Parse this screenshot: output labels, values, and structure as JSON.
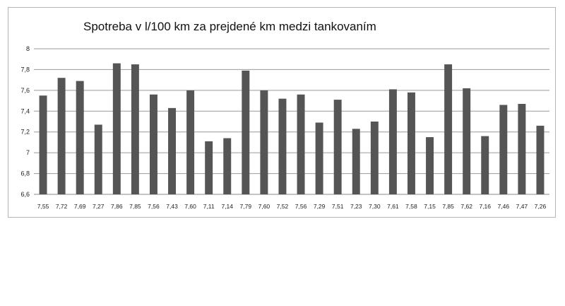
{
  "chart_data": {
    "type": "bar",
    "title": "Spotreba v l/100 km za prejdené km medzi tankovaním",
    "xlabel": "",
    "ylabel": "",
    "ylim": [
      6.6,
      8.0
    ],
    "yticks": [
      {
        "value": 6.6,
        "label": "6,6"
      },
      {
        "value": 6.8,
        "label": "6,8"
      },
      {
        "value": 7.0,
        "label": "7"
      },
      {
        "value": 7.2,
        "label": "7,2"
      },
      {
        "value": 7.4,
        "label": "7,4"
      },
      {
        "value": 7.6,
        "label": "7,6"
      },
      {
        "value": 7.8,
        "label": "7,8"
      },
      {
        "value": 8.0,
        "label": "8"
      }
    ],
    "grid": true,
    "legend": "none",
    "bar_color": "#555555",
    "categories": [
      "7,55",
      "7,72",
      "7,69",
      "7,27",
      "7,86",
      "7,85",
      "7,56",
      "7,43",
      "7,60",
      "7,11",
      "7,14",
      "7,79",
      "7,60",
      "7,52",
      "7,56",
      "7,29",
      "7,51",
      "7,23",
      "7,30",
      "7,61",
      "7,58",
      "7,15",
      "7,85",
      "7,62",
      "7,16",
      "7,46",
      "7,47",
      "7,26"
    ],
    "values": [
      7.55,
      7.72,
      7.69,
      7.27,
      7.86,
      7.85,
      7.56,
      7.43,
      7.6,
      7.11,
      7.14,
      7.79,
      7.6,
      7.52,
      7.56,
      7.29,
      7.51,
      7.23,
      7.3,
      7.61,
      7.58,
      7.15,
      7.85,
      7.62,
      7.16,
      7.46,
      7.47,
      7.26
    ]
  }
}
